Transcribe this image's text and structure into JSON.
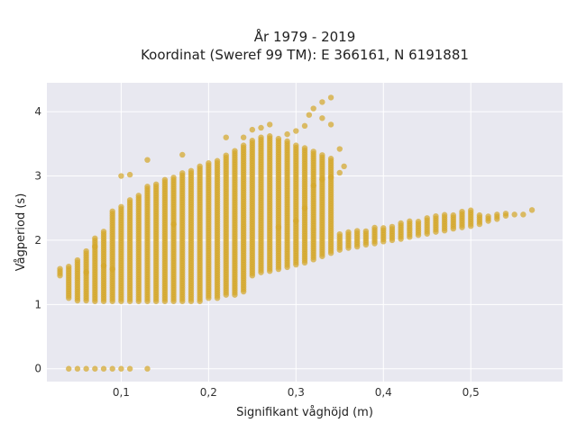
{
  "chart_data": {
    "type": "scatter",
    "title_lines": [
      "År 1979 - 2019",
      "Koordinat (Sweref 99 TM): E 366161, N 6191881"
    ],
    "xlabel": "Signifikant våghöjd (m)",
    "ylabel": "Vågperiod (s)",
    "xlim": [
      0.015,
      0.605
    ],
    "ylim": [
      -0.2,
      4.45
    ],
    "xticks": [
      0.1,
      0.2,
      0.3,
      0.4,
      0.5
    ],
    "xtick_labels": [
      "0,1",
      "0,2",
      "0,3",
      "0,4",
      "0,5"
    ],
    "yticks": [
      0,
      1,
      2,
      3,
      4
    ],
    "ytick_labels": [
      "0",
      "1",
      "2",
      "3",
      "4"
    ],
    "grid": true,
    "legend": "none",
    "colors": {
      "marker": "#d4a72c",
      "plot_bg": "#e8e8f0",
      "grid": "#ffffff"
    },
    "series": [
      {
        "columns": [
          [
            0.03,
            1.45,
            1.56
          ],
          [
            0.04,
            1.1,
            1.6
          ],
          [
            0.05,
            1.06,
            1.72
          ],
          [
            0.06,
            1.06,
            1.85
          ],
          [
            0.07,
            1.05,
            2.05
          ],
          [
            0.08,
            1.05,
            2.15
          ],
          [
            0.09,
            1.05,
            2.45
          ],
          [
            0.1,
            1.05,
            2.55
          ],
          [
            0.11,
            1.05,
            2.65
          ],
          [
            0.12,
            1.05,
            2.7
          ],
          [
            0.13,
            1.05,
            2.85
          ],
          [
            0.14,
            1.05,
            2.9
          ],
          [
            0.15,
            1.05,
            2.95
          ],
          [
            0.16,
            1.05,
            3.0
          ],
          [
            0.17,
            1.05,
            3.05
          ],
          [
            0.18,
            1.05,
            3.1
          ],
          [
            0.19,
            1.05,
            3.15
          ],
          [
            0.2,
            1.1,
            3.2
          ],
          [
            0.21,
            1.1,
            3.25
          ],
          [
            0.22,
            1.15,
            3.35
          ],
          [
            0.23,
            1.15,
            3.4
          ],
          [
            0.24,
            1.2,
            3.5
          ],
          [
            0.25,
            1.45,
            3.55
          ],
          [
            0.26,
            1.5,
            3.6
          ],
          [
            0.27,
            1.52,
            3.65
          ],
          [
            0.28,
            1.55,
            3.6
          ],
          [
            0.29,
            1.58,
            3.55
          ],
          [
            0.3,
            1.62,
            3.5
          ],
          [
            0.31,
            1.65,
            3.45
          ],
          [
            0.32,
            1.7,
            3.4
          ],
          [
            0.33,
            1.75,
            3.35
          ],
          [
            0.34,
            1.8,
            3.3
          ],
          [
            0.35,
            1.85,
            2.1
          ],
          [
            0.36,
            1.88,
            2.13
          ],
          [
            0.37,
            1.9,
            2.15
          ],
          [
            0.38,
            1.93,
            2.17
          ],
          [
            0.39,
            1.95,
            2.2
          ],
          [
            0.4,
            1.98,
            2.22
          ],
          [
            0.41,
            2.0,
            2.24
          ],
          [
            0.42,
            2.02,
            2.27
          ],
          [
            0.43,
            2.05,
            2.3
          ],
          [
            0.44,
            2.08,
            2.32
          ],
          [
            0.45,
            2.1,
            2.35
          ],
          [
            0.46,
            2.13,
            2.38
          ],
          [
            0.47,
            2.15,
            2.4
          ],
          [
            0.48,
            2.18,
            2.42
          ],
          [
            0.49,
            2.2,
            2.45
          ],
          [
            0.5,
            2.22,
            2.47
          ],
          [
            0.51,
            2.25,
            2.4
          ],
          [
            0.52,
            2.3,
            2.38
          ],
          [
            0.53,
            2.33,
            2.42
          ],
          [
            0.54,
            2.38,
            2.44
          ],
          [
            0.55,
            2.4,
            2.43
          ]
        ],
        "zero_points": [
          [
            0.04,
            0
          ],
          [
            0.05,
            0
          ],
          [
            0.06,
            0
          ],
          [
            0.07,
            0
          ],
          [
            0.08,
            0
          ],
          [
            0.09,
            0
          ],
          [
            0.1,
            0
          ],
          [
            0.11,
            0
          ],
          [
            0.13,
            0
          ]
        ],
        "outliers": [
          [
            0.57,
            2.47
          ],
          [
            0.56,
            2.4
          ],
          [
            0.355,
            3.15
          ],
          [
            0.35,
            3.42
          ],
          [
            0.34,
            4.22
          ],
          [
            0.33,
            4.15
          ],
          [
            0.32,
            4.05
          ],
          [
            0.315,
            3.95
          ],
          [
            0.31,
            3.78
          ],
          [
            0.3,
            3.7
          ],
          [
            0.29,
            3.65
          ],
          [
            0.27,
            3.8
          ],
          [
            0.26,
            3.75
          ],
          [
            0.25,
            3.72
          ],
          [
            0.24,
            3.6
          ],
          [
            0.17,
            3.33
          ],
          [
            0.13,
            3.25
          ],
          [
            0.11,
            3.02
          ],
          [
            0.1,
            3.0
          ],
          [
            0.16,
            2.25
          ],
          [
            0.33,
            2.95
          ],
          [
            0.32,
            2.85
          ],
          [
            0.3,
            2.3
          ],
          [
            0.31,
            2.5
          ],
          [
            0.28,
            2.2
          ],
          [
            0.35,
            3.05
          ],
          [
            0.34,
            2.98
          ],
          [
            0.22,
            3.6
          ],
          [
            0.33,
            3.9
          ],
          [
            0.34,
            3.8
          ],
          [
            0.07,
            1.9
          ],
          [
            0.06,
            1.5
          ],
          [
            0.08,
            1.6
          ],
          [
            0.09,
            1.55
          ]
        ]
      }
    ]
  }
}
